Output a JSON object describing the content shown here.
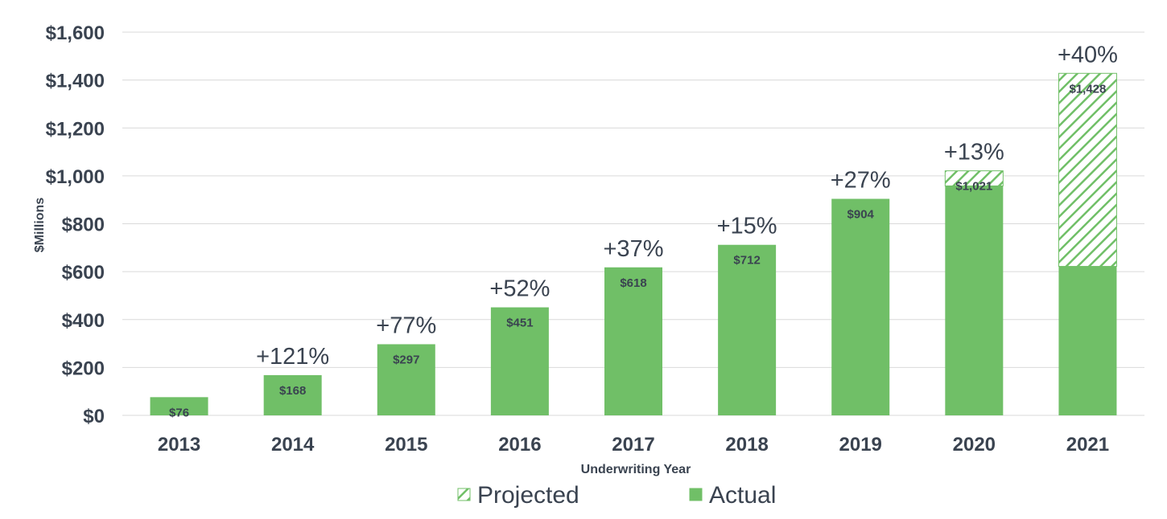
{
  "chart_data": {
    "type": "bar",
    "stacked": true,
    "title": "",
    "xlabel": "Underwriting Year",
    "ylabel": "$Millions",
    "ylim": [
      0,
      1600
    ],
    "yticks": [
      0,
      200,
      400,
      600,
      800,
      1000,
      1200,
      1400,
      1600
    ],
    "ytick_labels": [
      "$0",
      "$200",
      "$400",
      "$600",
      "$800",
      "$1,000",
      "$1,200",
      "$1,400",
      "$1,600"
    ],
    "categories": [
      "2013",
      "2014",
      "2015",
      "2016",
      "2017",
      "2018",
      "2019",
      "2020",
      "2021"
    ],
    "series": [
      {
        "name": "Actual",
        "pattern": "solid",
        "color": "#70bf67",
        "values": [
          76,
          168,
          297,
          451,
          618,
          712,
          904,
          958,
          622
        ]
      },
      {
        "name": "Projected",
        "pattern": "hatched",
        "color": "#70bf67",
        "values": [
          0,
          0,
          0,
          0,
          0,
          0,
          0,
          63,
          806
        ]
      }
    ],
    "totals": [
      76,
      168,
      297,
      451,
      618,
      712,
      904,
      1021,
      1428
    ],
    "total_labels": [
      "$76",
      "$168",
      "$297",
      "$451",
      "$618",
      "$712",
      "$904",
      "$1,021",
      "$1,428"
    ],
    "growth_labels": [
      "",
      "+121%",
      "+77%",
      "+52%",
      "+37%",
      "+15%",
      "+27%",
      "+13%",
      "+40%"
    ],
    "legend": {
      "position": "bottom",
      "items": [
        {
          "label": "Projected",
          "pattern": "hatched"
        },
        {
          "label": "Actual",
          "pattern": "solid"
        }
      ]
    },
    "grid": true
  }
}
